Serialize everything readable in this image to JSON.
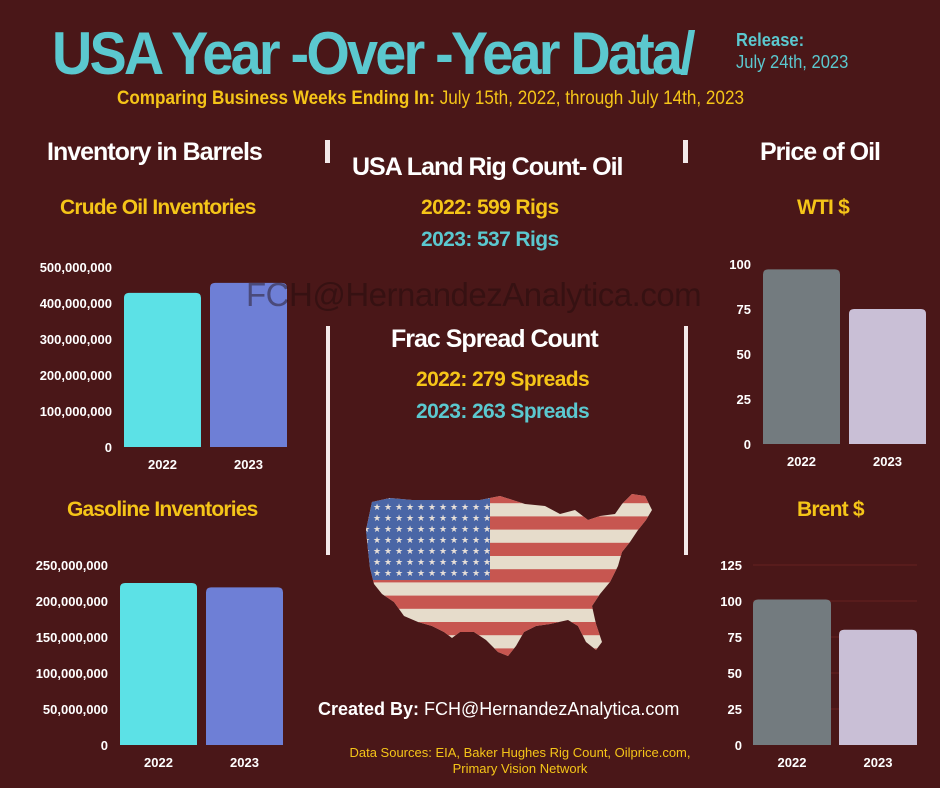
{
  "header": {
    "title": "USA Year -Over -Year Data/",
    "release_label": "Release:",
    "release_date": "July 24th, 2023",
    "subtitle_bold": "Comparing Business Weeks Ending In:",
    "subtitle_rest": " July 15th, 2022, through July 14th, 2023"
  },
  "sections": {
    "inventory_title": "Inventory in Barrels",
    "rig_title": "USA Land  Rig  Count- Oil",
    "price_title": "Price of Oil",
    "frac_title": "Frac Spread Count"
  },
  "rig_count": {
    "line_2022": "2022: 599 Rigs",
    "line_2023": "2023: 537 Rigs"
  },
  "frac_count": {
    "line_2022": "2022:  279 Spreads",
    "line_2023": "2023:  263 Spreads"
  },
  "watermark": "FCH@HernandezAnalytica.com",
  "footer": {
    "created_label": "Created By:",
    "created_value": " FCH@HernandezAnalytica.com",
    "sources_line1": "Data Sources: EIA, Baker Hughes Rig Count, Oilprice.com,",
    "sources_line2": "Primary Vision Network"
  },
  "map_icon": "usa-flag-map",
  "colors": {
    "background": "#4a1718",
    "title_cyan": "#5bc8cf",
    "accent_yellow": "#f5c518",
    "bar_cyan": "#5ce1e6",
    "bar_blue": "#6e7fd6",
    "bar_gray": "#737b7f",
    "bar_lavender": "#c9bfd6"
  },
  "chart_data": [
    {
      "id": "crude",
      "type": "bar",
      "title": "Crude Oil Inventories",
      "categories": [
        "2022",
        "2023"
      ],
      "values": [
        428000000,
        456000000
      ],
      "ylim": [
        0,
        500000000
      ],
      "yticks": [
        0,
        100000000,
        200000000,
        300000000,
        400000000,
        500000000
      ],
      "ytick_labels": [
        "0",
        "100,000,000",
        "200,000,000",
        "300,000,000",
        "400,000,000",
        "500,000,000"
      ],
      "colors": [
        "#5ce1e6",
        "#6e7fd6"
      ],
      "xlabel": "",
      "ylabel": "",
      "grid": false
    },
    {
      "id": "gasoline",
      "type": "bar",
      "title": "Gasoline Inventories",
      "categories": [
        "2022",
        "2023"
      ],
      "values": [
        225000000,
        219000000
      ],
      "ylim": [
        0,
        250000000
      ],
      "yticks": [
        0,
        50000000,
        100000000,
        150000000,
        200000000,
        250000000
      ],
      "ytick_labels": [
        "0",
        "50,000,000",
        "100,000,000",
        "150,000,000",
        "200,000,000",
        "250,000,000"
      ],
      "colors": [
        "#5ce1e6",
        "#6e7fd6"
      ],
      "xlabel": "",
      "ylabel": "",
      "grid": false
    },
    {
      "id": "wti",
      "type": "bar",
      "title": "WTI $",
      "categories": [
        "2022",
        "2023"
      ],
      "values": [
        97,
        75
      ],
      "ylim": [
        0,
        100
      ],
      "yticks": [
        0,
        25,
        50,
        75,
        100
      ],
      "ytick_labels": [
        "0",
        "25",
        "50",
        "75",
        "100"
      ],
      "colors": [
        "#737b7f",
        "#c9bfd6"
      ],
      "xlabel": "",
      "ylabel": "",
      "grid": false
    },
    {
      "id": "brent",
      "type": "bar",
      "title": "Brent $",
      "categories": [
        "2022",
        "2023"
      ],
      "values": [
        101,
        80
      ],
      "ylim": [
        0,
        125
      ],
      "yticks": [
        0,
        25,
        50,
        75,
        100,
        125
      ],
      "ytick_labels": [
        "0",
        "25",
        "50",
        "75",
        "100",
        "125"
      ],
      "colors": [
        "#737b7f",
        "#c9bfd6"
      ],
      "xlabel": "",
      "ylabel": "",
      "grid": true
    }
  ]
}
